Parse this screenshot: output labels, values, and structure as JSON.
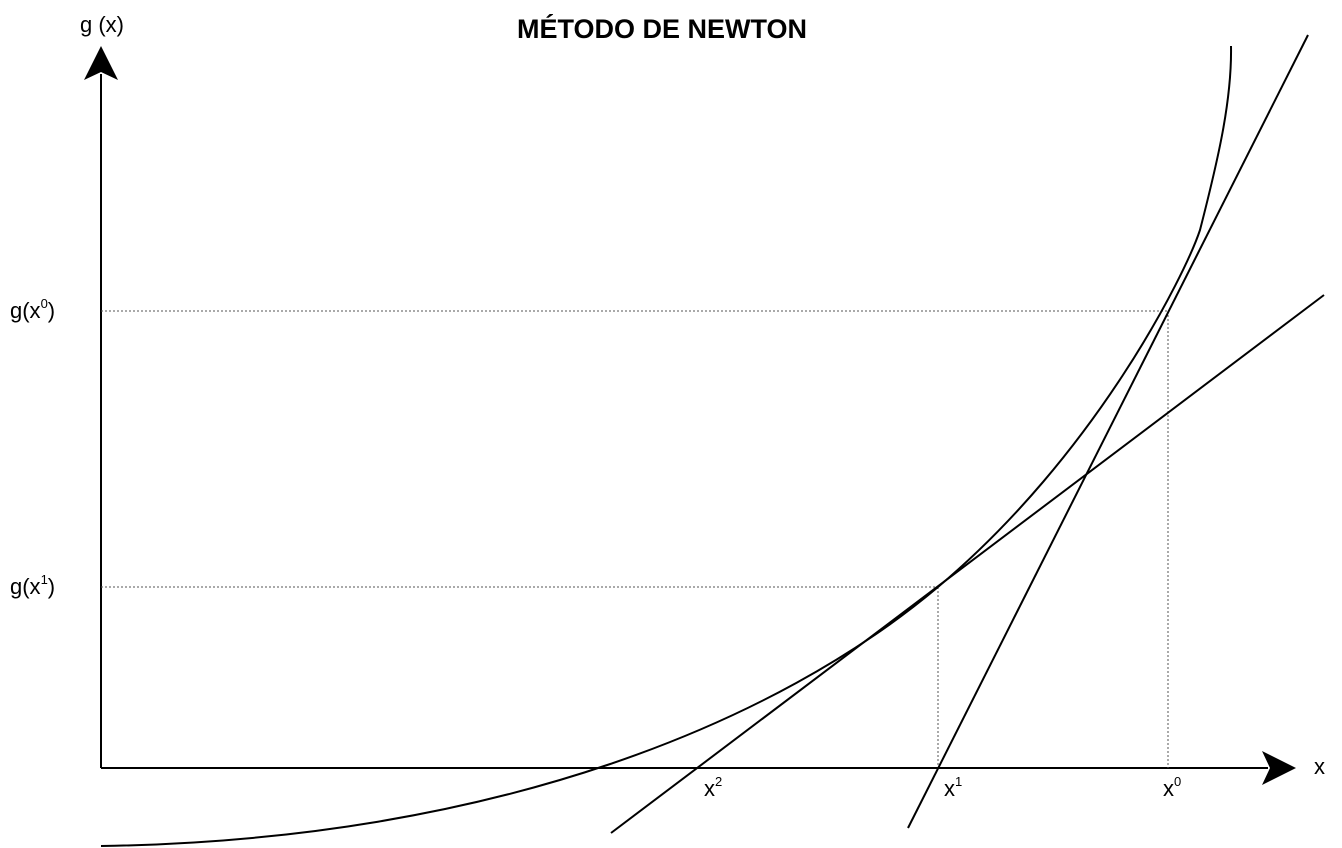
{
  "title": "MÉTODO DE NEWTON",
  "y_axis_label": "g (x)",
  "x_axis_label": "x",
  "y_labels": {
    "g_x0": {
      "base": "g(x",
      "sup": "0",
      "close": ")"
    },
    "g_x1": {
      "base": "g(x",
      "sup": "1",
      "close": ")"
    }
  },
  "x_labels": {
    "x0": {
      "base": "x",
      "sup": "0"
    },
    "x1": {
      "base": "x",
      "sup": "1"
    },
    "x2": {
      "base": "x",
      "sup": "2"
    }
  },
  "colors": {
    "ink": "#000000",
    "background": "#ffffff"
  }
}
